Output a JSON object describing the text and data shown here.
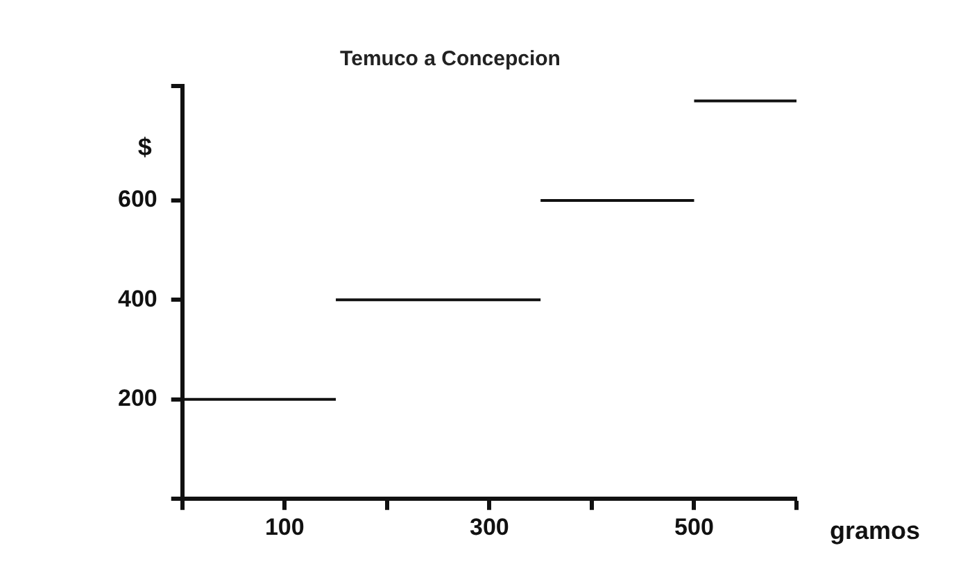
{
  "chart_data": {
    "type": "line",
    "title": "Temuco a Concepcion",
    "xlabel": "gramos",
    "ylabel": "$",
    "series": [
      {
        "color": "#111111",
        "x": [
          0,
          150
        ],
        "values": [
          200,
          200
        ]
      },
      {
        "color": "#111111",
        "x": [
          150,
          350
        ],
        "values": [
          400,
          400
        ]
      },
      {
        "color": "#111111",
        "x": [
          350,
          500
        ],
        "values": [
          600,
          600
        ]
      },
      {
        "color": "#111111",
        "x": [
          500,
          600
        ],
        "values": [
          800,
          800
        ]
      }
    ],
    "xlim": [
      0,
      600
    ],
    "xticks": [
      {
        "value": 0,
        "label": null
      },
      100,
      {
        "value": 200,
        "label": null
      },
      300,
      {
        "value": 400,
        "label": null
      },
      500,
      {
        "value": 600,
        "label": null
      }
    ],
    "ylim": [
      0,
      830
    ],
    "yticks": [
      {
        "value": 0,
        "label": null
      },
      200,
      400,
      600,
      {
        "value": 830,
        "label": null
      }
    ],
    "grid": false,
    "legend": false,
    "marker": "none",
    "line_style": "solid"
  }
}
